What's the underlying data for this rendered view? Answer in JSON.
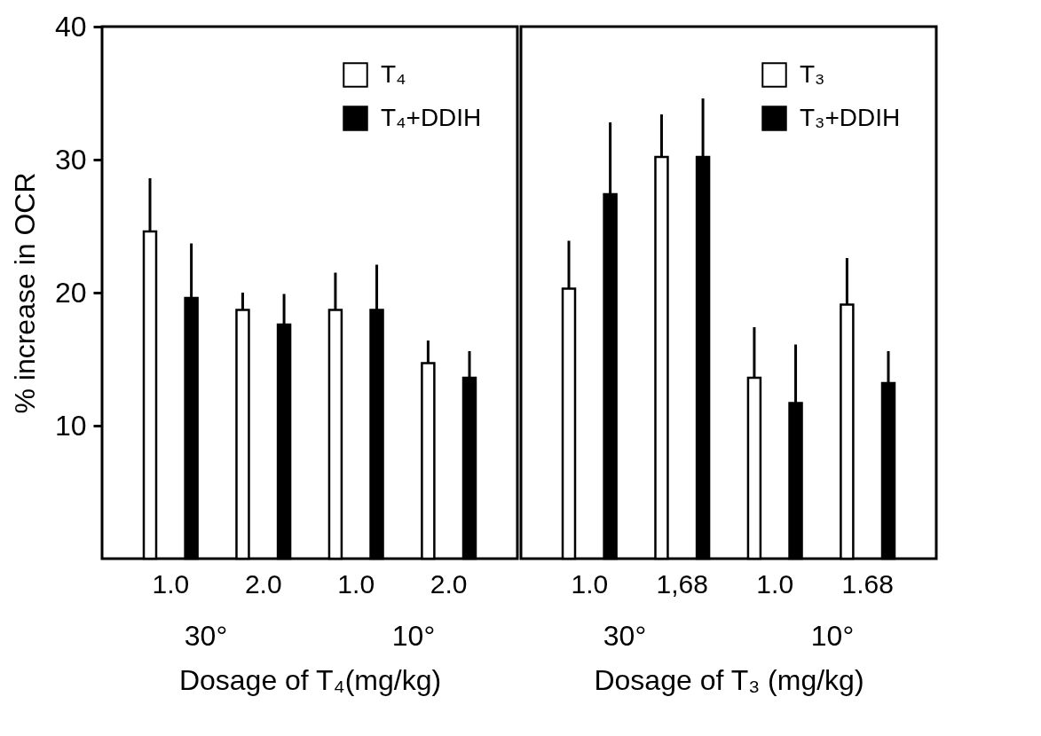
{
  "chart_data": [
    {
      "type": "bar",
      "ylabel": "% increase in OCR",
      "xlabel": "Dosage of T₄(mg/kg)",
      "categories": [
        "1.0",
        "2.0",
        "1.0",
        "2.0"
      ],
      "ylim": [
        0,
        40
      ],
      "yticks": [
        10,
        20,
        30,
        40
      ],
      "legend": "top right",
      "annotations": [
        "30°",
        "10°"
      ],
      "series": [
        {
          "name": "T₄",
          "color": "#ffffff",
          "values": [
            24.6,
            18.7,
            18.7,
            14.7
          ],
          "errors": [
            [
              24.6,
              28.6
            ],
            [
              18.7,
              20.0
            ],
            [
              18.7,
              21.5
            ],
            [
              14.7,
              16.4
            ]
          ]
        },
        {
          "name": "T₄+DDIH",
          "color": "#000000",
          "values": [
            19.6,
            17.6,
            18.7,
            13.6
          ],
          "errors": [
            [
              19.6,
              23.7
            ],
            [
              17.6,
              19.9
            ],
            [
              18.7,
              22.1
            ],
            [
              13.6,
              15.6
            ]
          ]
        }
      ]
    },
    {
      "type": "bar",
      "xlabel": "Dosage of T₃ (mg/kg)",
      "categories": [
        "1.0",
        "1,68",
        "1.0",
        "1.68"
      ],
      "ylim": [
        0,
        40
      ],
      "yticks": [
        10,
        20,
        30,
        40
      ],
      "tick_labels": "x",
      "legend": "top right",
      "annotations": [
        "30°",
        "10°"
      ],
      "series": [
        {
          "name": "T₃",
          "color": "#ffffff",
          "values": [
            20.3,
            30.2,
            13.6,
            19.1
          ],
          "errors": [
            [
              20.3,
              23.9
            ],
            [
              30.2,
              33.4
            ],
            [
              13.6,
              17.4
            ],
            [
              19.1,
              22.6
            ]
          ]
        },
        {
          "name": "T₃+DDIH",
          "color": "#000000",
          "values": [
            27.4,
            30.2,
            11.7,
            13.2
          ],
          "errors": [
            [
              27.4,
              32.8
            ],
            [
              30.2,
              34.6
            ],
            [
              11.7,
              16.1
            ],
            [
              13.2,
              15.6
            ]
          ]
        }
      ]
    }
  ]
}
